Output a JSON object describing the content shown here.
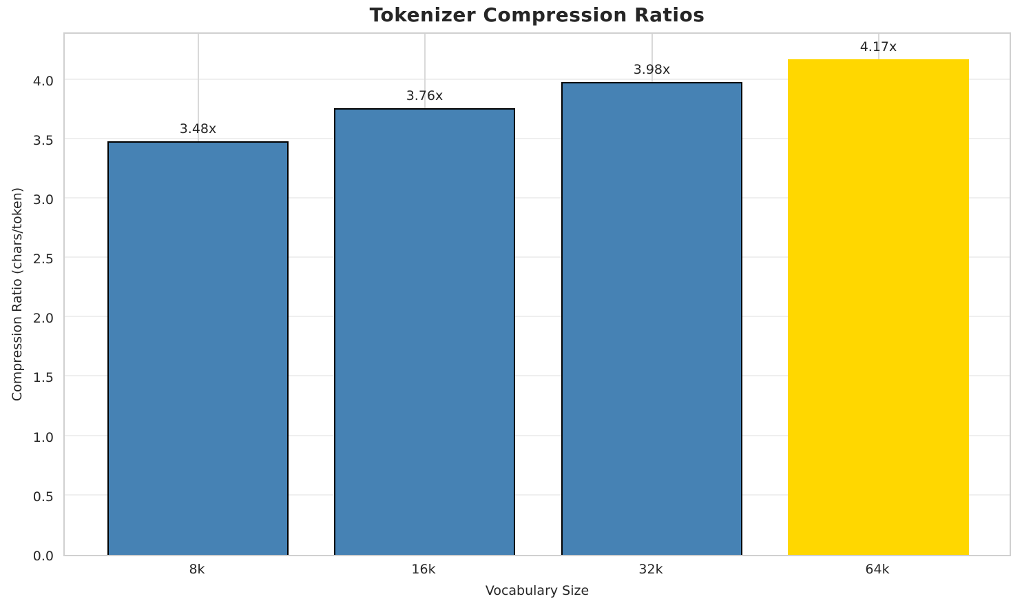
{
  "chart_data": {
    "type": "bar",
    "title": "Tokenizer Compression Ratios",
    "xlabel": "Vocabulary Size",
    "ylabel": "Compression Ratio (chars/token)",
    "categories": [
      "8k",
      "16k",
      "32k",
      "64k"
    ],
    "values": [
      3.48,
      3.76,
      3.98,
      4.17
    ],
    "value_labels": [
      "3.48x",
      "3.76x",
      "3.98x",
      "4.17x"
    ],
    "bar_colors": [
      "#4682B4",
      "#4682B4",
      "#4682B4",
      "#FFD700"
    ],
    "bar_edge_colors": [
      "#000000",
      "#000000",
      "#000000",
      "none"
    ],
    "highlight_category": "64k",
    "ytick_labels": [
      "0.0",
      "0.5",
      "1.0",
      "1.5",
      "2.0",
      "2.5",
      "3.0",
      "3.5",
      "4.0"
    ],
    "yticks": [
      0.0,
      0.5,
      1.0,
      1.5,
      2.0,
      2.5,
      3.0,
      3.5,
      4.0
    ],
    "ylim": [
      0,
      4.41
    ],
    "grid": "both",
    "legend_position": "none",
    "colors": {
      "bar_default": "#4682B4",
      "bar_highlight": "#FFD700",
      "bar_edge": "#000000",
      "spine": "#d0d0d0",
      "grid_horizontal": "#efefef",
      "grid_vertical": "#d9d9d9",
      "text": "#262626"
    }
  }
}
